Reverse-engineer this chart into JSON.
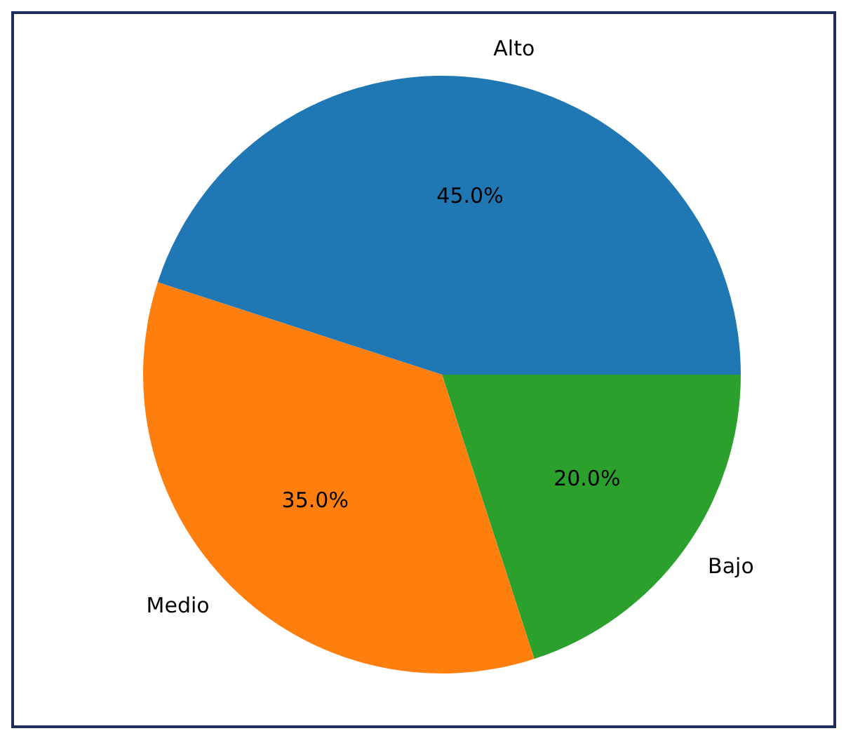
{
  "chart_data": {
    "type": "pie",
    "categories": [
      "Alto",
      "Medio",
      "Bajo"
    ],
    "values": [
      45,
      35,
      20
    ],
    "colors": [
      "#1f77b4",
      "#ff7f0e",
      "#2ca02c"
    ],
    "value_labels": [
      "45.0%",
      "35.0%",
      "20.0%"
    ],
    "legend": false
  }
}
